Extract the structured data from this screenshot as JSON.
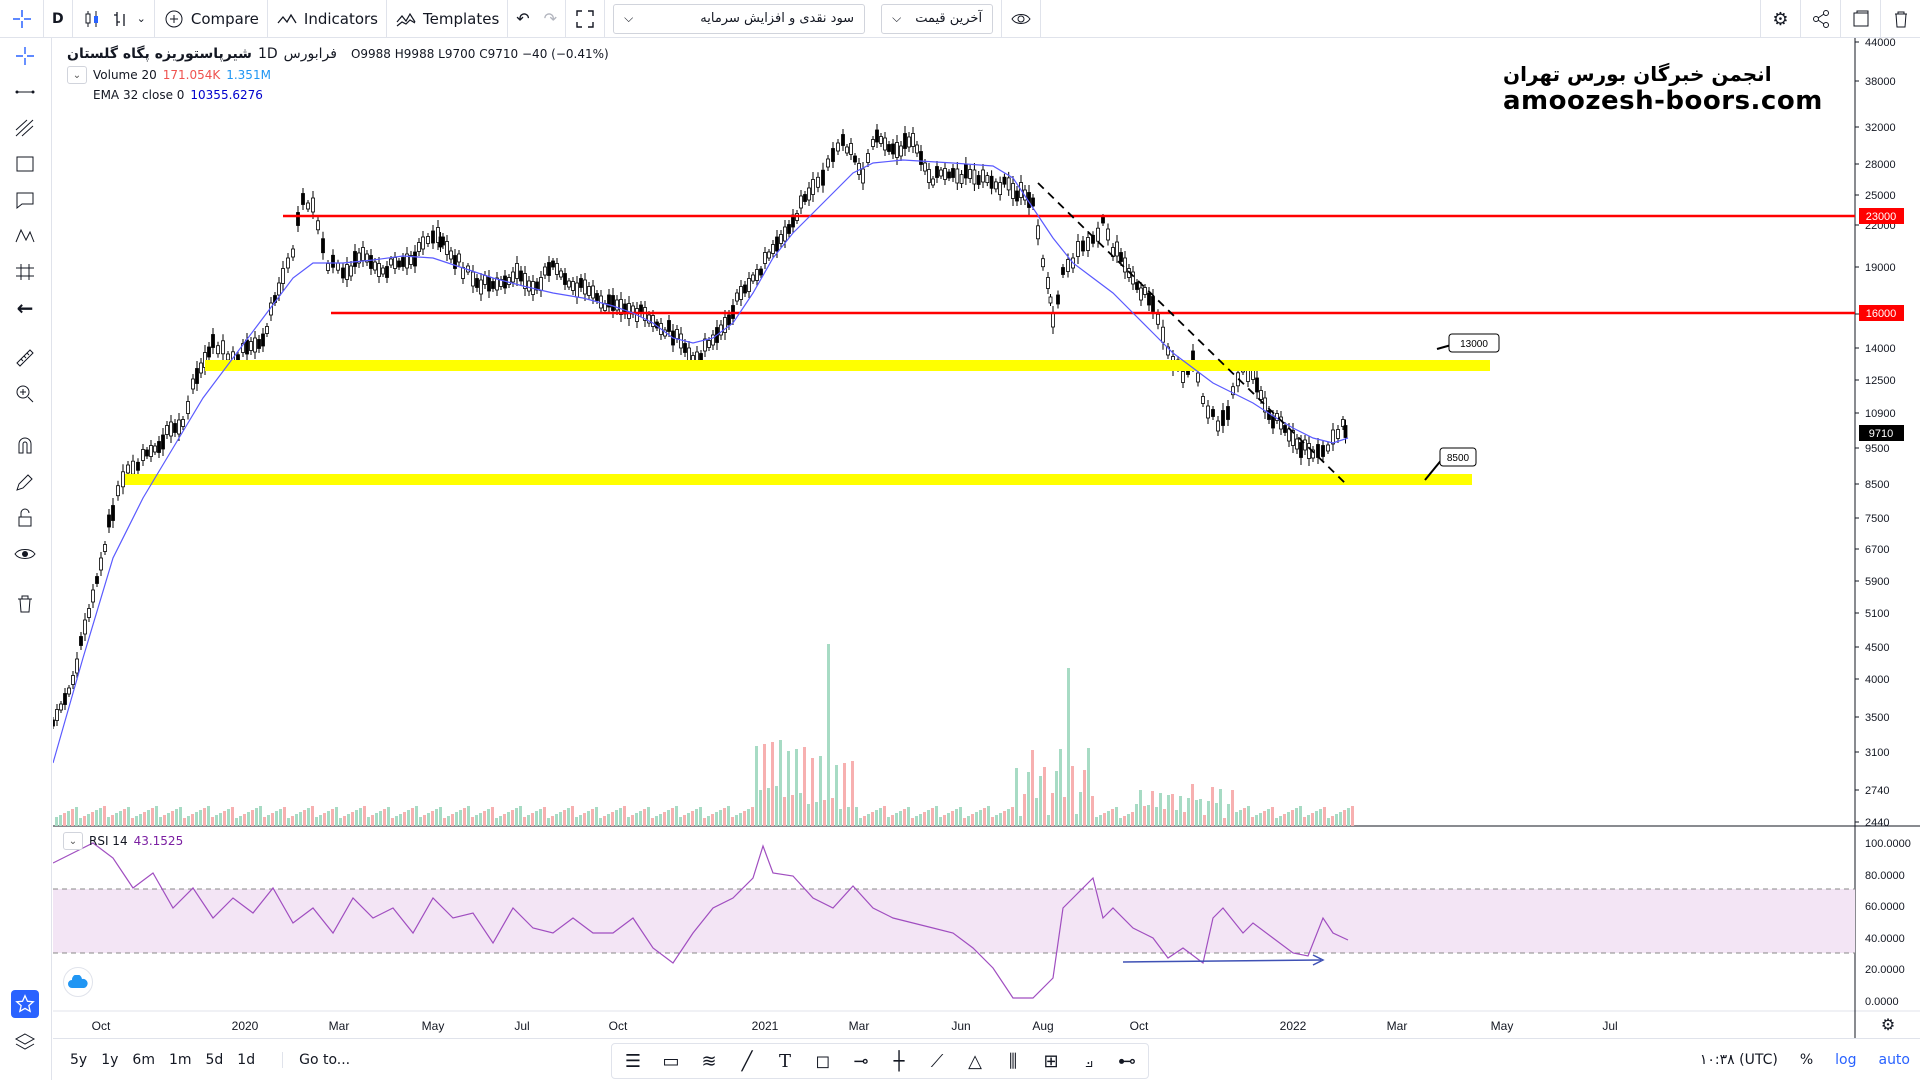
{
  "toolbar": {
    "interval": "D",
    "compare_label": "Compare",
    "indicators_label": "Indicators",
    "templates_label": "Templates",
    "dividend_select": "سود نقدی و افزایش سرمایه",
    "price_select": "آخرین قیمت"
  },
  "legend": {
    "symbol": "شیرپاستوریزه پگاه گلستان",
    "timeframe": "1D",
    "exchange": "فرابورس",
    "o_label": "O",
    "o": "9988",
    "h_label": "H",
    "h": "9988",
    "l_label": "L",
    "l": "9700",
    "c_label": "C",
    "c": "9710",
    "change": "−40 (−0.41%)",
    "volume_name": "Volume 20",
    "volume_v1": "171.054K",
    "volume_v2": "1.351M",
    "ema_name": "EMA 32 close 0",
    "ema_value": "10355.6276",
    "rsi_name": "RSI 14",
    "rsi_value": "43.1525"
  },
  "watermark": {
    "fa": "انجمن خبرگان بورس تهران",
    "en": "amoozesh-boors.com"
  },
  "price_axis": {
    "ticks": [
      "44000",
      "38000",
      "32000",
      "28000",
      "25000",
      "22000",
      "19000",
      "16000",
      "14000",
      "12500",
      "10900",
      "9500",
      "8500",
      "7500",
      "6700",
      "5900",
      "5100",
      "4500",
      "4000",
      "3500",
      "3100",
      "2740",
      "2440"
    ],
    "marker_23000": "23000",
    "marker_16000": "16000",
    "marker_last": "9710"
  },
  "rsi_axis": {
    "ticks": [
      "100.0000",
      "80.0000",
      "60.0000",
      "40.0000",
      "20.0000",
      "0.0000"
    ]
  },
  "time_axis": {
    "labels": [
      "Oct",
      "2020",
      "Mar",
      "May",
      "Jul",
      "Oct",
      "2021",
      "Mar",
      "Jun",
      "Aug",
      "Oct",
      "2022",
      "Mar",
      "May",
      "Jul"
    ]
  },
  "callouts": {
    "upper": "13000",
    "lower": "8500"
  },
  "colors": {
    "support_zone": "#ffff00",
    "resistance_line": "#ff0000",
    "ema_line": "#5a5aff",
    "rsi_line": "#a04ec0",
    "rsi_band": "#f3e5f5",
    "vol_up": "#a7dbc4",
    "vol_down": "#f7b0b0"
  },
  "bottom": {
    "ranges": [
      "5y",
      "1y",
      "6m",
      "1m",
      "5d",
      "1d"
    ],
    "goto": "Go to...",
    "clock": "۱۰:۳۸ (UTC)",
    "percent": "%",
    "log": "log",
    "auto": "auto"
  }
}
